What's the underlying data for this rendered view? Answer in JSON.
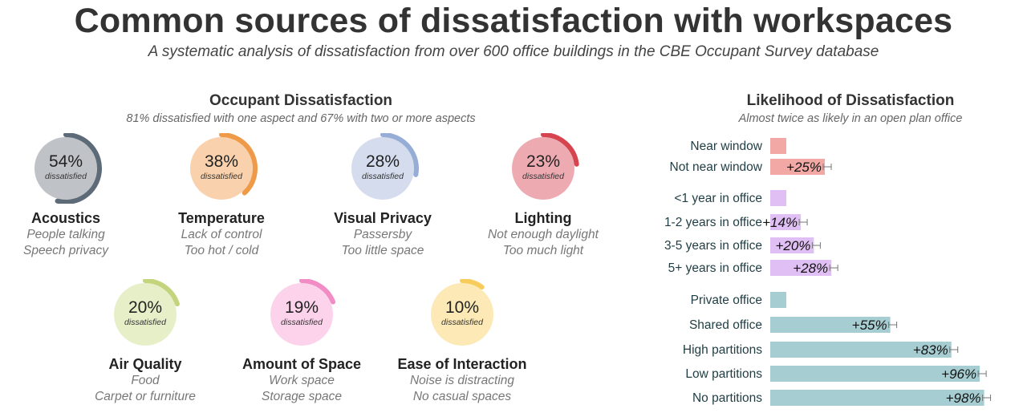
{
  "header": {
    "title": "Common sources of dissatisfaction with workspaces",
    "subtitle": "A systematic analysis of dissatisfaction from over 600 office buildings in the CBE Occupant Survey database"
  },
  "left_panel": {
    "title": "Occupant Dissatisfaction",
    "subtitle": "81% dissatisfied with one aspect and 67% with two or more aspects"
  },
  "right_panel": {
    "title": "Likelihood of Dissatisfaction",
    "subtitle": "Almost twice as likely in an open plan office"
  },
  "chart_data": [
    {
      "type": "pie",
      "value_suffix": "dissatisfied",
      "items": [
        {
          "name": "Acoustics",
          "pct_label": "54%",
          "value": 54,
          "details": [
            "People talking",
            "Speech privacy"
          ],
          "color": "#5d6b78",
          "fill": "#bfc3c8"
        },
        {
          "name": "Temperature",
          "pct_label": "38%",
          "value": 38,
          "details": [
            "Lack of control",
            "Too hot / cold"
          ],
          "color": "#ef9a48",
          "fill": "#f9d2ad"
        },
        {
          "name": "Visual Privacy",
          "pct_label": "28%",
          "value": 28,
          "details": [
            "Passersby",
            "Too little space"
          ],
          "color": "#96aed6",
          "fill": "#d4dcee"
        },
        {
          "name": "Lighting",
          "pct_label": "23%",
          "value": 23,
          "details": [
            "Not enough daylight",
            "Too much light"
          ],
          "color": "#d64450",
          "fill": "#eeaab1"
        },
        {
          "name": "Air Quality",
          "pct_label": "20%",
          "value": 20,
          "details": [
            "Food",
            "Carpet or furniture"
          ],
          "color": "#c2d47c",
          "fill": "#e7efc9"
        },
        {
          "name": "Amount of Space",
          "pct_label": "19%",
          "value": 19,
          "details": [
            "Work space",
            "Storage space"
          ],
          "color": "#f18cc4",
          "fill": "#fcd3ea"
        },
        {
          "name": "Ease of Interaction",
          "pct_label": "10%",
          "value": 10,
          "details": [
            "Noise is distracting",
            "No casual spaces"
          ],
          "color": "#f8cc5a",
          "fill": "#fde9b5"
        }
      ]
    },
    {
      "type": "bar",
      "orientation": "horizontal",
      "groups": [
        {
          "color": "#f2a9a5",
          "bars": [
            {
              "category": "Near window",
              "value": 0,
              "label": ""
            },
            {
              "category": "Not near window",
              "value": 25,
              "label": "+25%"
            }
          ]
        },
        {
          "color": "#e0c0f4",
          "bars": [
            {
              "category": "<1 year in office",
              "value": 0,
              "label": ""
            },
            {
              "category": "1-2 years in office",
              "value": 14,
              "label": "+14%"
            },
            {
              "category": "3-5 years in office",
              "value": 20,
              "label": "+20%"
            },
            {
              "category": "5+ years in office",
              "value": 28,
              "label": "+28%"
            }
          ]
        },
        {
          "color": "#a6cdd1",
          "bars": [
            {
              "category": "Private office",
              "value": 0,
              "label": ""
            },
            {
              "category": "Shared office",
              "value": 55,
              "label": "+55%"
            },
            {
              "category": "High partitions",
              "value": 83,
              "label": "+83%"
            },
            {
              "category": "Low partitions",
              "value": 96,
              "label": "+96%"
            },
            {
              "category": "No partitions",
              "value": 98,
              "label": "+98%"
            }
          ]
        }
      ]
    }
  ]
}
